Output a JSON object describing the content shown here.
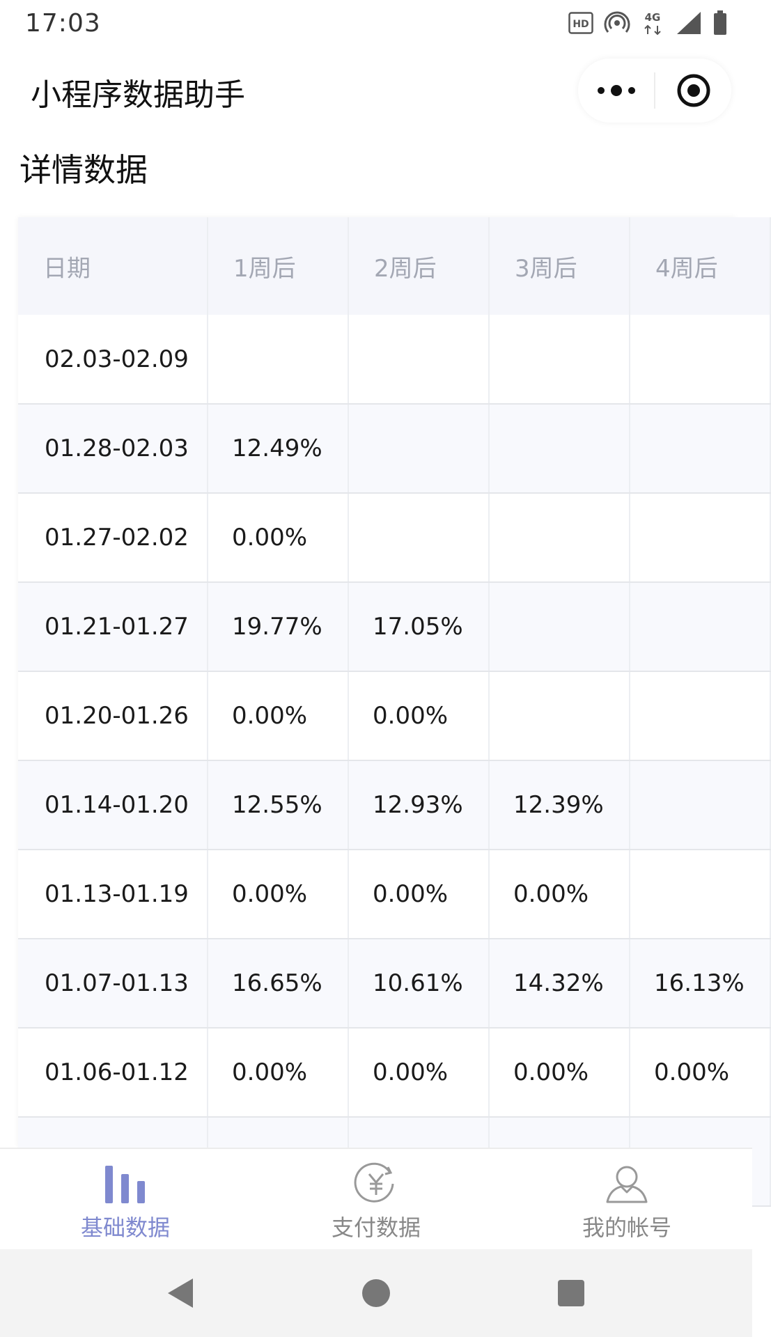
{
  "status_bar": {
    "time": "17:03",
    "network": "4G",
    "hd": "HD"
  },
  "nav": {
    "title": "小程序数据助手"
  },
  "section": {
    "title": "详情数据"
  },
  "table": {
    "headers": [
      "日期",
      "1周后",
      "2周后",
      "3周后",
      "4周后"
    ],
    "rows": [
      [
        "02.03-02.09",
        "",
        "",
        "",
        ""
      ],
      [
        "01.28-02.03",
        "12.49%",
        "",
        "",
        ""
      ],
      [
        "01.27-02.02",
        "0.00%",
        "",
        "",
        ""
      ],
      [
        "01.21-01.27",
        "19.77%",
        "17.05%",
        "",
        ""
      ],
      [
        "01.20-01.26",
        "0.00%",
        "0.00%",
        "",
        ""
      ],
      [
        "01.14-01.20",
        "12.55%",
        "12.93%",
        "12.39%",
        ""
      ],
      [
        "01.13-01.19",
        "0.00%",
        "0.00%",
        "0.00%",
        ""
      ],
      [
        "01.07-01.13",
        "16.65%",
        "10.61%",
        "14.32%",
        "16.13%"
      ],
      [
        "01.06-01.12",
        "0.00%",
        "0.00%",
        "0.00%",
        "0.00%"
      ],
      [
        "",
        "",
        "",
        "",
        ""
      ]
    ]
  },
  "tabs": [
    {
      "label": "基础数据",
      "icon": "bar-chart-icon",
      "active": true
    },
    {
      "label": "支付数据",
      "icon": "yuan-coin-icon",
      "active": false
    },
    {
      "label": "我的帐号",
      "icon": "user-icon",
      "active": false
    }
  ],
  "colors": {
    "accent": "#7f89cf",
    "header_bg": "#f5f6fb",
    "header_text": "#a3a7b3",
    "row_alt_bg": "#f8f9fd"
  }
}
